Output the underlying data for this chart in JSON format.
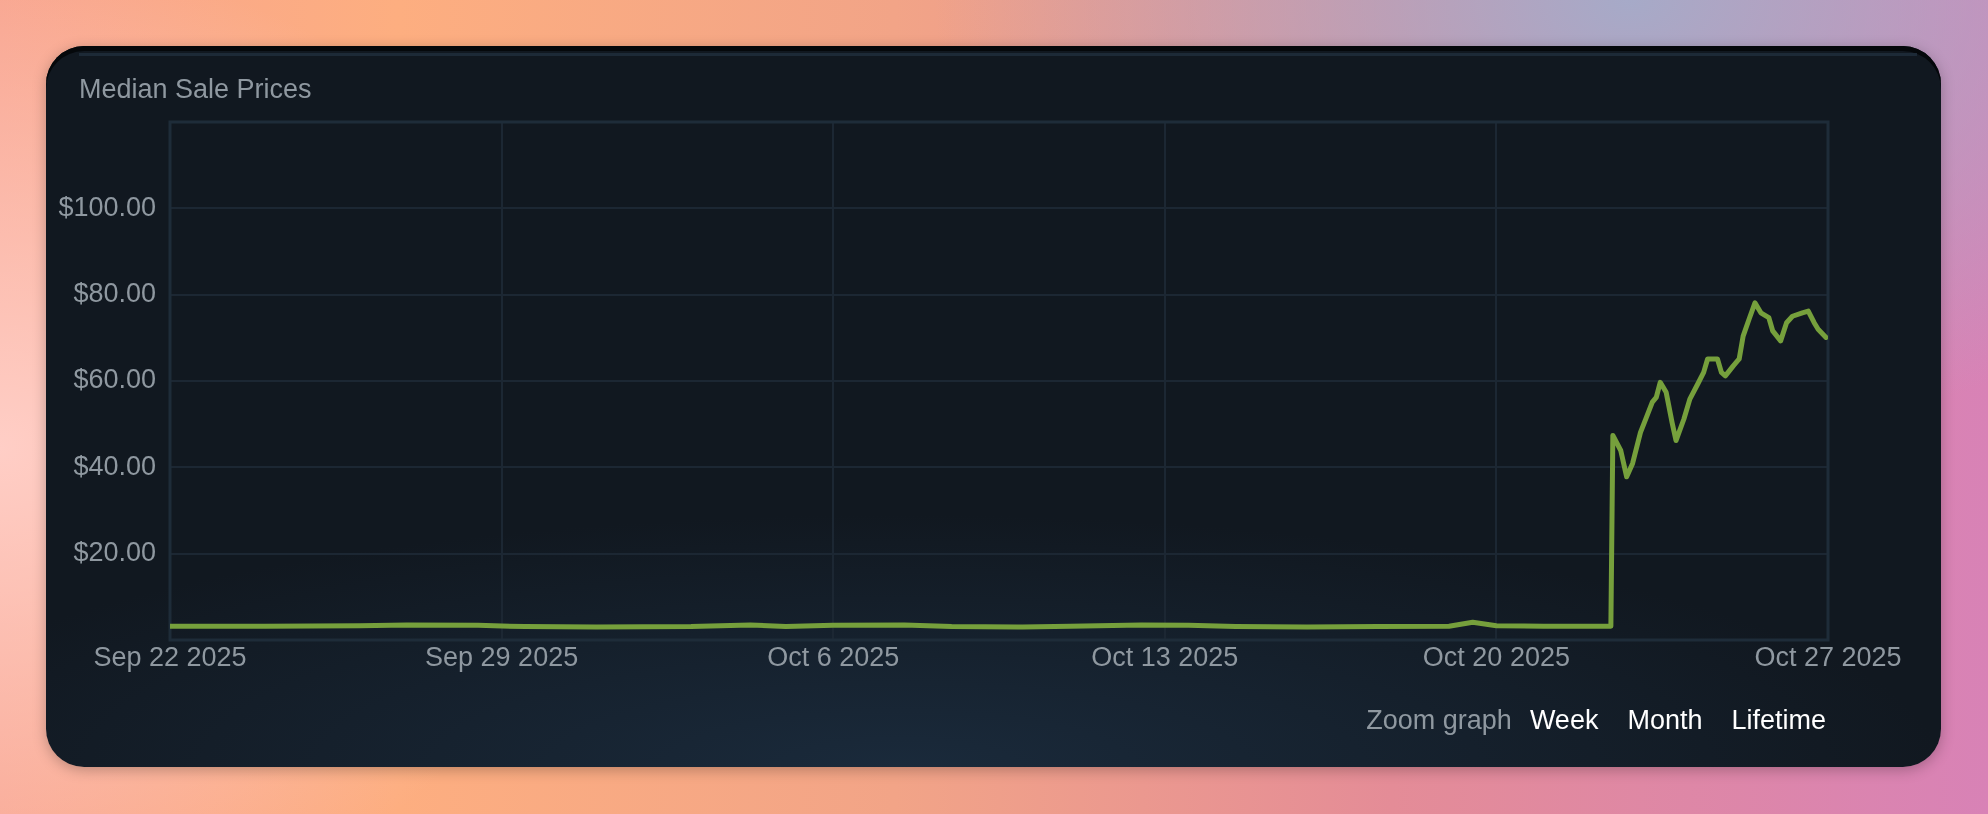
{
  "chart_data": {
    "type": "line",
    "title": "Median Sale Prices",
    "x": [
      "2025-09-22T00:00",
      "2025-09-24T00:00",
      "2025-09-26T00:00",
      "2025-09-27T00:00",
      "2025-09-28T12:00",
      "2025-09-29T12:00",
      "2025-10-01T00:00",
      "2025-10-03T00:00",
      "2025-10-04T06:00",
      "2025-10-05T00:00",
      "2025-10-06T00:00",
      "2025-10-07T12:00",
      "2025-10-08T12:00",
      "2025-10-10T00:00",
      "2025-10-11T00:00",
      "2025-10-12T12:00",
      "2025-10-13T12:00",
      "2025-10-14T12:00",
      "2025-10-16T00:00",
      "2025-10-17T12:00",
      "2025-10-19T00:00",
      "2025-10-19T12:00",
      "2025-10-20T00:00",
      "2025-10-21T00:00",
      "2025-10-22T10:00",
      "2025-10-22T11:00",
      "2025-10-22T15:00",
      "2025-10-22T18:00",
      "2025-10-22T21:00",
      "2025-10-23T01:00",
      "2025-10-23T03:00",
      "2025-10-23T07:00",
      "2025-10-23T09:00",
      "2025-10-23T11:00",
      "2025-10-23T14:00",
      "2025-10-23T17:00",
      "2025-10-23T19:00",
      "2025-10-23T23:00",
      "2025-10-24T02:00",
      "2025-10-24T06:00",
      "2025-10-24T09:00",
      "2025-10-24T11:00",
      "2025-10-24T16:00",
      "2025-10-24T18:00",
      "2025-10-24T20:00",
      "2025-10-25T00:00",
      "2025-10-25T03:00",
      "2025-10-25T05:00",
      "2025-10-25T08:00",
      "2025-10-25T11:00",
      "2025-10-25T14:00",
      "2025-10-25T18:00",
      "2025-10-25T20:00",
      "2025-10-26T00:00",
      "2025-10-26T03:00",
      "2025-10-26T06:00",
      "2025-10-26T11:00",
      "2025-10-26T14:00",
      "2025-10-26T17:00",
      "2025-10-26T19:00",
      "2025-10-26T23:00"
    ],
    "values": [
      3.2,
      3.2,
      3.3,
      3.5,
      3.4,
      3.1,
      3.0,
      3.1,
      3.5,
      3.1,
      3.4,
      3.5,
      3.1,
      3.0,
      3.2,
      3.5,
      3.4,
      3.1,
      3.0,
      3.1,
      3.2,
      4.1,
      3.3,
      3.2,
      3.2,
      47.4,
      43.9,
      37.8,
      40.9,
      48.1,
      50.4,
      55.1,
      56.2,
      59.7,
      57.4,
      50.4,
      46.2,
      51.2,
      55.8,
      59.3,
      62.0,
      65.1,
      65.1,
      62.0,
      61.2,
      63.5,
      65.1,
      70.4,
      74.3,
      78.1,
      75.8,
      74.7,
      71.6,
      69.3,
      73.5,
      75.0,
      75.8,
      76.2,
      73.5,
      72.0,
      70.1
    ],
    "color": "#76a03c",
    "xlim": [
      "2025-09-22",
      "2025-10-27"
    ],
    "xticks": [
      {
        "value": "2025-09-22",
        "label": "Sep 22 2025"
      },
      {
        "value": "2025-09-29",
        "label": "Sep 29 2025"
      },
      {
        "value": "2025-10-06",
        "label": "Oct 6 2025"
      },
      {
        "value": "2025-10-13",
        "label": "Oct 13 2025"
      },
      {
        "value": "2025-10-20",
        "label": "Oct 20 2025"
      },
      {
        "value": "2025-10-27",
        "label": "Oct 27 2025"
      }
    ],
    "ylim": [
      0,
      120
    ],
    "yticks": [
      {
        "value": 20,
        "label": "$20.00"
      },
      {
        "value": 40,
        "label": "$40.00"
      },
      {
        "value": 60,
        "label": "$60.00"
      },
      {
        "value": 80,
        "label": "$80.00"
      },
      {
        "value": 100,
        "label": "$100.00"
      }
    ],
    "grid": true,
    "annotations": [
      "Zoom graph",
      "Week",
      "Month",
      "Lifetime"
    ]
  }
}
